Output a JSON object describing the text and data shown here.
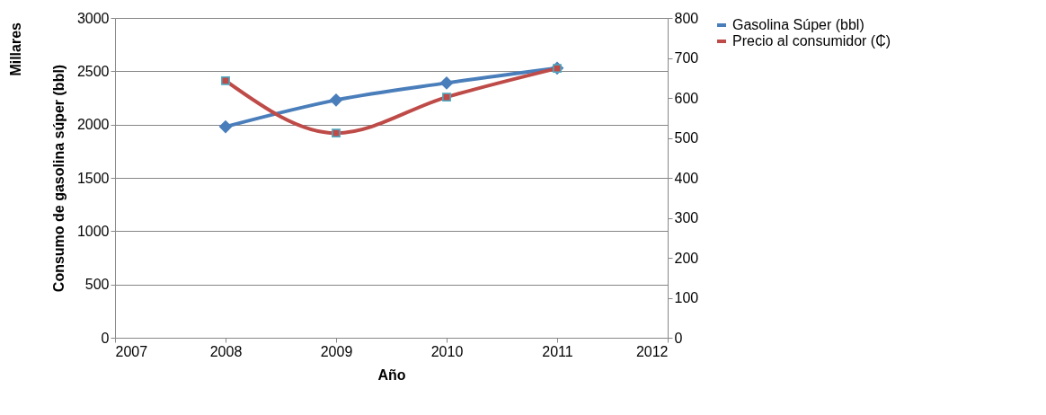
{
  "chart_data": {
    "type": "line",
    "xlabel": "Año",
    "ylabel": "Consumo de gasolina súper (bbl)",
    "annotations": [
      "Millares"
    ],
    "x": [
      2008,
      2009,
      2010,
      2011
    ],
    "series": [
      {
        "name": "Gasolina Súper (bbl)",
        "color": "#4a7ebb",
        "values": [
          1980,
          2230,
          2390,
          2530
        ],
        "marker": "diamond"
      },
      {
        "name": "Precio al consumidor (₵)",
        "color": "#be4b48",
        "values": [
          643,
          512,
          602,
          674
        ],
        "marker": "square",
        "axis": "y2"
      }
    ],
    "xlim": [
      2007,
      2012
    ],
    "xticks": [
      2007,
      2008,
      2009,
      2010,
      2011,
      2012
    ],
    "ylim": [
      0,
      3000
    ],
    "yticks": [
      0,
      500,
      1000,
      1500,
      2000,
      2500,
      3000
    ],
    "y2lim": [
      0,
      800
    ],
    "y2ticks": [
      0,
      100,
      200,
      300,
      400,
      500,
      600,
      700,
      800
    ],
    "grid": "y",
    "legend": "right",
    "line_style": "solid"
  }
}
